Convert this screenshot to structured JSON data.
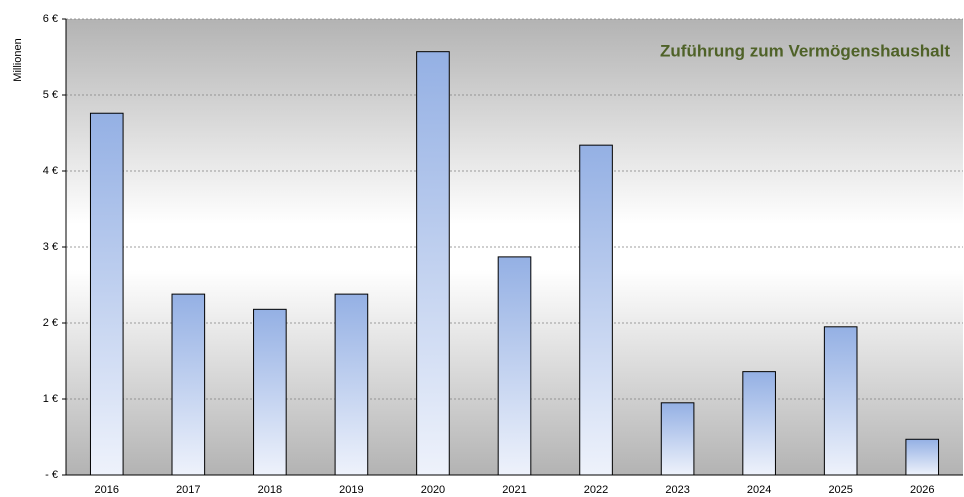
{
  "chart_data": {
    "type": "bar",
    "title": "Zuführung zum Vermögenshaushalt",
    "y_label": "Millionen",
    "categories": [
      "2016",
      "2017",
      "2018",
      "2019",
      "2020",
      "2021",
      "2022",
      "2023",
      "2024",
      "2025",
      "2026"
    ],
    "values": [
      4.76,
      2.38,
      2.18,
      2.38,
      5.57,
      2.87,
      4.34,
      0.95,
      1.36,
      1.95,
      0.47
    ],
    "color": "#94b0e4",
    "title_color": "#4f6228",
    "ylim": [
      0,
      6
    ],
    "yticks": [
      {
        "value": 0,
        "label": "- €"
      },
      {
        "value": 1,
        "label": "1 €"
      },
      {
        "value": 2,
        "label": "2 €"
      },
      {
        "value": 3,
        "label": "3 €"
      },
      {
        "value": 4,
        "label": "4 €"
      },
      {
        "value": 5,
        "label": "5 €"
      },
      {
        "value": 6,
        "label": "6 €"
      }
    ],
    "grid": true
  }
}
